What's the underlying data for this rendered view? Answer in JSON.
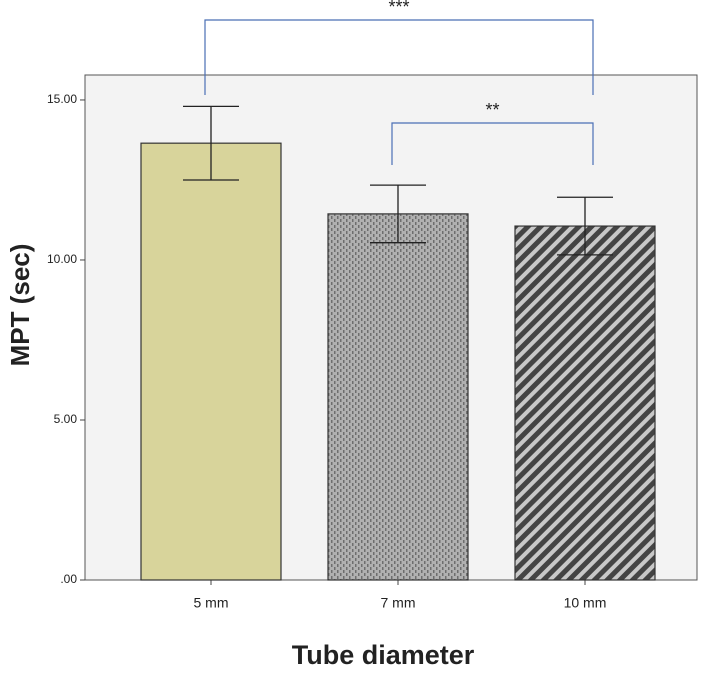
{
  "chart_data": {
    "type": "bar",
    "x_label": "Tube diameter",
    "y_label": "MPT (sec)",
    "categories": [
      "5 mm",
      "7 mm",
      "10 mm"
    ],
    "values": [
      13.65,
      11.44,
      11.06
    ],
    "errors": [
      1.15,
      0.9,
      0.9
    ],
    "colors": [
      "#d8d49b",
      "#a3a3a3",
      "#5c5c5c"
    ],
    "patterns": [
      "solid",
      "dots",
      "stripes"
    ],
    "ylim": [
      0,
      15.78
    ],
    "yticks": [
      {
        "value": 0,
        "label": ".00"
      },
      {
        "value": 5,
        "label": "5.00"
      },
      {
        "value": 10,
        "label": "10.00"
      },
      {
        "value": 15,
        "label": "15.00"
      }
    ],
    "annotations": [
      {
        "text": "***",
        "between": [
          "5 mm",
          "10 mm"
        ]
      },
      {
        "text": "**",
        "between": [
          "7 mm",
          "10 mm"
        ]
      }
    ]
  }
}
